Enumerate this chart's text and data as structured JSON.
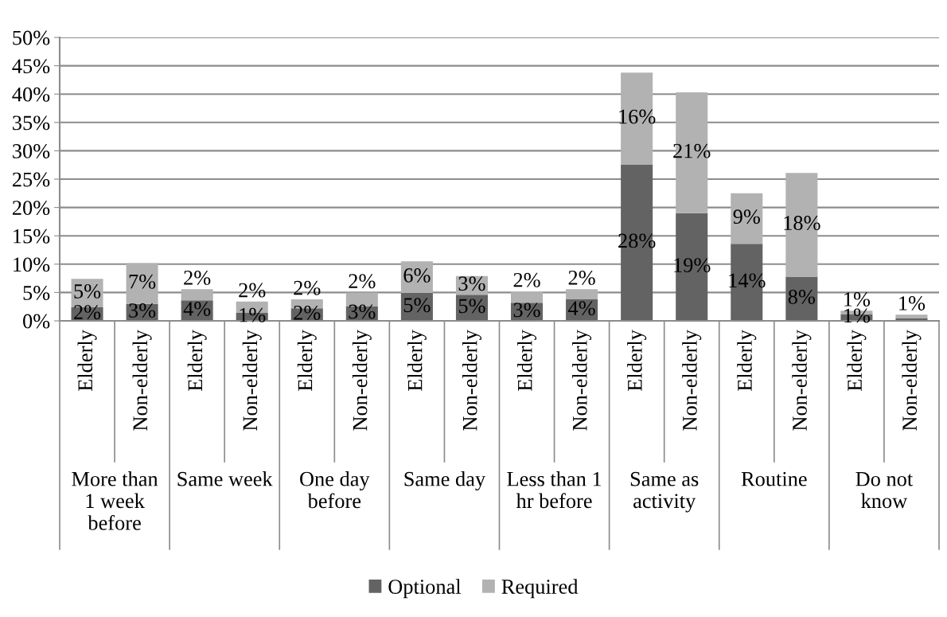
{
  "chart_data": {
    "type": "bar",
    "stacked": true,
    "categories": [
      "Elderly",
      "Non-elderly",
      "Elderly",
      "Non-elderly",
      "Elderly",
      "Non-elderly",
      "Elderly",
      "Non-elderly",
      "Elderly",
      "Non-elderly",
      "Elderly",
      "Non-elderly",
      "Elderly",
      "Non-elderly",
      "Elderly",
      "Non-elderly"
    ],
    "annotations": [
      "More than\n1 week\nbefore",
      "Same week",
      "One day\nbefore",
      "Same day",
      "Less than 1\nhr before",
      "Same as\nactivity",
      "Routine",
      "Do not\nknow"
    ],
    "series": [
      {
        "name": "Optional",
        "color": "#636363",
        "values": [
          2.4,
          3.0,
          3.6,
          1.4,
          2.2,
          2.6,
          4.9,
          4.6,
          3.2,
          3.8,
          27.6,
          19.0,
          13.6,
          7.8,
          1.2,
          0.5
        ],
        "value_labels": [
          "2%",
          "3%",
          "4%",
          "1%",
          "2%",
          "3%",
          "5%",
          "5%",
          "3%",
          "4%",
          "28%",
          "19%",
          "14%",
          "8%",
          "1%",
          null
        ]
      },
      {
        "name": "Required",
        "color": "#b2b2b2",
        "values": [
          5.0,
          7.2,
          2.0,
          2.0,
          1.6,
          2.4,
          5.6,
          3.3,
          2.0,
          1.8,
          16.2,
          21.3,
          8.9,
          18.3,
          0.6,
          0.6
        ],
        "value_labels": [
          "5%",
          "7%",
          "2%",
          "2%",
          "2%",
          "2%",
          "6%",
          "3%",
          "2%",
          "2%",
          "16%",
          "21%",
          "9%",
          "18%",
          "1%",
          "1%"
        ]
      }
    ],
    "ylim": [
      0,
      50
    ],
    "yticks": [
      {
        "value": 0,
        "label": "0%"
      },
      {
        "value": 5,
        "label": "5%"
      },
      {
        "value": 10,
        "label": "10%"
      },
      {
        "value": 15,
        "label": "15%"
      },
      {
        "value": 20,
        "label": "20%"
      },
      {
        "value": 25,
        "label": "25%"
      },
      {
        "value": 30,
        "label": "30%"
      },
      {
        "value": 35,
        "label": "35%"
      },
      {
        "value": 40,
        "label": "40%"
      },
      {
        "value": 45,
        "label": "45%"
      },
      {
        "value": 50,
        "label": "50%"
      }
    ],
    "grid": "y",
    "legend": "bottom"
  }
}
